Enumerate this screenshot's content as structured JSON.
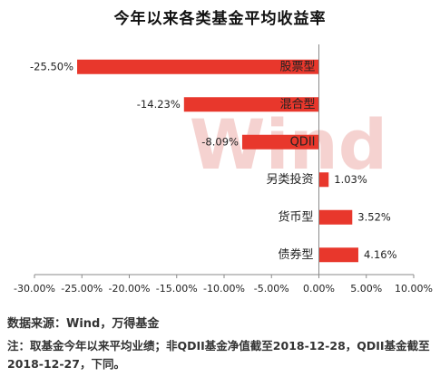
{
  "chart_data": {
    "type": "bar",
    "orientation": "horizontal",
    "title": "今年以来各类基金平均收益率",
    "categories": [
      "股票型",
      "混合型",
      "QDII",
      "另类投资",
      "货币型",
      "债券型"
    ],
    "values": [
      -25.5,
      -14.23,
      -8.09,
      1.03,
      3.52,
      4.16
    ],
    "value_labels": [
      "-25.50%",
      "-14.23%",
      "-8.09%",
      "1.03%",
      "3.52%",
      "4.16%"
    ],
    "xlim": [
      -30,
      10
    ],
    "x_ticks": [
      -30,
      -25,
      -20,
      -15,
      -10,
      -5,
      0,
      5,
      10
    ],
    "x_tick_labels": [
      "-30.00%",
      "-25.00%",
      "-20.00%",
      "-15.00%",
      "-10.00%",
      "-5.00%",
      "0.00%",
      "5.00%",
      "10.00%"
    ],
    "grid": false,
    "bar_color": "#e8372c",
    "watermark": "Wind"
  },
  "source": "数据来源：Wind，万得基金",
  "note": "注：取基金今年以来平均业绩；非QDII基金净值截至2018-12-28，QDII基金截至2018-12-27，下同。"
}
